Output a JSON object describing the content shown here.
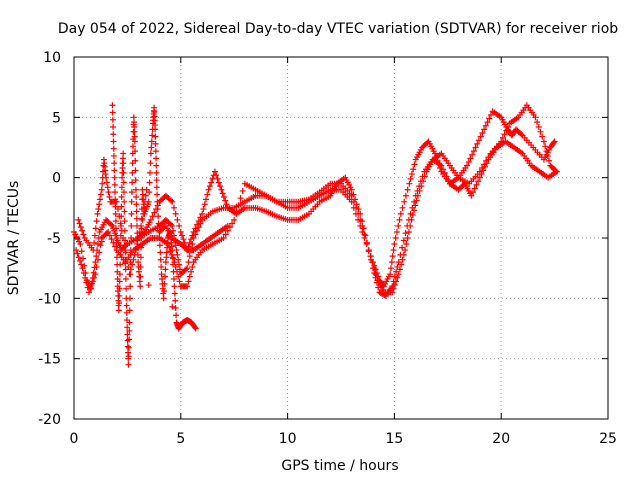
{
  "chart_data": {
    "type": "scatter",
    "title": "Day 054 of 2022, Sidereal Day-to-day VTEC variation (SDTVAR) for receiver riob",
    "xlabel": "GPS time / hours",
    "ylabel": "SDTVAR / TECUs",
    "xlim": [
      0,
      25
    ],
    "ylim": [
      -20,
      10
    ],
    "xticks": [
      0,
      5,
      10,
      15,
      20,
      25
    ],
    "yticks": [
      -20,
      -15,
      -10,
      -5,
      0,
      5,
      10
    ],
    "grid": true,
    "marker": "+",
    "series_color": "#ff0000",
    "series": [
      {
        "name": "track-a",
        "points": [
          [
            0.0,
            -4.5
          ],
          [
            0.3,
            -5.5
          ],
          [
            0.6,
            -8.5
          ],
          [
            0.8,
            -9.2
          ],
          [
            1.0,
            -7.0
          ],
          [
            1.2,
            -4.5
          ],
          [
            1.5,
            -3.5
          ],
          [
            1.8,
            -4.0
          ],
          [
            2.0,
            -5.0
          ],
          [
            2.2,
            -6.0
          ],
          [
            2.5,
            -5.5
          ],
          [
            3.0,
            -5.0
          ],
          [
            3.5,
            -4.5
          ],
          [
            4.0,
            -4.0
          ],
          [
            4.3,
            -3.5
          ],
          [
            4.6,
            -4.0
          ],
          [
            4.8,
            -6.0
          ],
          [
            5.0,
            -8.0
          ],
          [
            5.3,
            -7.5
          ],
          [
            5.6,
            -5.0
          ],
          [
            6.0,
            -3.5
          ],
          [
            6.5,
            -2.8
          ],
          [
            7.0,
            -2.5
          ],
          [
            7.5,
            -2.5
          ],
          [
            8.0,
            -2.0
          ],
          [
            8.5,
            -1.5
          ],
          [
            9.0,
            -1.5
          ],
          [
            9.5,
            -2.0
          ],
          [
            10.0,
            -2.5
          ],
          [
            10.5,
            -2.5
          ],
          [
            11.0,
            -2.0
          ],
          [
            11.5,
            -1.5
          ],
          [
            12.0,
            -1.0
          ],
          [
            12.5,
            -1.0
          ],
          [
            13.0,
            -2.0
          ],
          [
            13.5,
            -4.5
          ],
          [
            14.0,
            -7.0
          ],
          [
            14.3,
            -8.5
          ],
          [
            14.5,
            -9.0
          ],
          [
            14.8,
            -8.0
          ],
          [
            15.0,
            -5.5
          ],
          [
            15.3,
            -3.0
          ],
          [
            15.7,
            -0.5
          ],
          [
            16.0,
            1.5
          ],
          [
            16.3,
            2.5
          ],
          [
            16.6,
            3.0
          ],
          [
            16.9,
            2.0
          ],
          [
            17.2,
            0.5
          ],
          [
            17.6,
            -0.5
          ],
          [
            18.0,
            0.0
          ],
          [
            18.4,
            1.0
          ],
          [
            18.8,
            2.5
          ],
          [
            19.2,
            4.0
          ],
          [
            19.6,
            5.5
          ],
          [
            20.0,
            5.0
          ],
          [
            20.3,
            4.0
          ],
          [
            20.5,
            3.5
          ],
          [
            20.7,
            4.0
          ],
          [
            21.0,
            3.5
          ],
          [
            21.5,
            2.5
          ],
          [
            22.0,
            1.5
          ],
          [
            22.3,
            2.5
          ],
          [
            22.5,
            3.0
          ]
        ]
      },
      {
        "name": "track-b",
        "points": [
          [
            0.1,
            -6.0
          ],
          [
            0.4,
            -7.5
          ],
          [
            0.7,
            -9.5
          ],
          [
            1.0,
            -8.0
          ],
          [
            1.3,
            -5.0
          ],
          [
            1.6,
            -4.5
          ],
          [
            2.0,
            -6.0
          ],
          [
            2.4,
            -7.0
          ],
          [
            2.8,
            -6.0
          ],
          [
            3.2,
            -5.5
          ],
          [
            3.6,
            -5.0
          ],
          [
            4.0,
            -5.0
          ],
          [
            4.4,
            -5.5
          ],
          [
            4.7,
            -7.0
          ],
          [
            5.0,
            -9.0
          ],
          [
            5.3,
            -9.0
          ],
          [
            5.6,
            -7.0
          ],
          [
            6.0,
            -6.0
          ],
          [
            6.5,
            -5.5
          ],
          [
            7.0,
            -5.0
          ],
          [
            7.5,
            -3.5
          ],
          [
            8.0,
            -0.5
          ],
          [
            8.5,
            -1.0
          ],
          [
            9.0,
            -1.5
          ],
          [
            9.5,
            -2.0
          ],
          [
            10.0,
            -2.0
          ],
          [
            10.5,
            -2.0
          ],
          [
            11.0,
            -1.8
          ],
          [
            11.5,
            -1.2
          ],
          [
            12.0,
            -0.5
          ],
          [
            12.5,
            -0.5
          ],
          [
            13.0,
            -1.5
          ],
          [
            13.5,
            -4.0
          ],
          [
            14.0,
            -7.5
          ],
          [
            14.3,
            -9.5
          ],
          [
            14.6,
            -9.8
          ],
          [
            14.9,
            -9.0
          ],
          [
            15.2,
            -7.0
          ],
          [
            15.6,
            -4.0
          ],
          [
            16.0,
            -1.5
          ],
          [
            16.4,
            0.5
          ],
          [
            16.8,
            1.5
          ],
          [
            17.2,
            2.0
          ],
          [
            17.6,
            1.0
          ],
          [
            18.0,
            0.0
          ],
          [
            18.5,
            -0.5
          ],
          [
            19.0,
            0.5
          ],
          [
            19.5,
            2.0
          ],
          [
            20.0,
            3.0
          ],
          [
            20.4,
            4.5
          ],
          [
            20.8,
            5.0
          ],
          [
            21.2,
            6.0
          ],
          [
            21.6,
            5.0
          ],
          [
            22.0,
            3.0
          ],
          [
            22.3,
            1.0
          ],
          [
            22.6,
            0.5
          ]
        ]
      },
      {
        "name": "track-c",
        "points": [
          [
            3.0,
            -5.0
          ],
          [
            3.3,
            -4.5
          ],
          [
            3.6,
            -3.5
          ],
          [
            4.0,
            -2.0
          ],
          [
            4.3,
            -1.5
          ],
          [
            4.6,
            -2.0
          ],
          [
            5.0,
            -4.5
          ],
          [
            5.3,
            -6.0
          ],
          [
            5.6,
            -4.5
          ],
          [
            6.0,
            -3.0
          ],
          [
            6.3,
            -1.0
          ],
          [
            6.6,
            0.5
          ],
          [
            6.9,
            -1.0
          ],
          [
            7.2,
            -2.5
          ],
          [
            7.6,
            -3.0
          ],
          [
            8.0,
            -2.5
          ],
          [
            8.5,
            -2.5
          ],
          [
            9.0,
            -2.8
          ],
          [
            9.5,
            -3.2
          ],
          [
            10.0,
            -3.5
          ],
          [
            10.5,
            -3.5
          ],
          [
            11.0,
            -3.0
          ],
          [
            11.5,
            -2.0
          ],
          [
            12.0,
            -1.5
          ],
          [
            12.3,
            -0.5
          ],
          [
            12.7,
            0.0
          ],
          [
            13.0,
            -1.0
          ],
          [
            13.4,
            -3.0
          ],
          [
            13.8,
            -6.0
          ],
          [
            14.2,
            -8.5
          ],
          [
            14.5,
            -9.5
          ],
          [
            14.9,
            -9.5
          ],
          [
            15.2,
            -8.0
          ],
          [
            15.5,
            -6.0
          ],
          [
            15.8,
            -3.5
          ],
          [
            16.1,
            -1.5
          ],
          [
            16.5,
            0.5
          ],
          [
            16.8,
            1.5
          ],
          [
            17.2,
            1.0
          ],
          [
            17.6,
            -0.5
          ],
          [
            18.0,
            -1.0
          ],
          [
            18.3,
            -0.5
          ],
          [
            18.6,
            -1.5
          ],
          [
            19.0,
            0.0
          ],
          [
            19.4,
            1.5
          ],
          [
            19.8,
            2.5
          ],
          [
            20.2,
            3.0
          ],
          [
            20.6,
            2.5
          ],
          [
            21.0,
            2.0
          ],
          [
            21.4,
            1.0
          ],
          [
            21.8,
            0.5
          ],
          [
            22.2,
            0.0
          ],
          [
            22.6,
            0.5
          ]
        ]
      },
      {
        "name": "track-d",
        "points": [
          [
            4.0,
            -4.5
          ],
          [
            4.3,
            -4.0
          ],
          [
            4.6,
            -5.0
          ],
          [
            5.0,
            -5.5
          ],
          [
            5.3,
            -6.0
          ],
          [
            5.6,
            -6.0
          ],
          [
            6.0,
            -5.5
          ],
          [
            6.4,
            -5.0
          ],
          [
            6.8,
            -4.5
          ],
          [
            7.2,
            -4.0
          ]
        ]
      },
      {
        "name": "early-spikes",
        "points": [
          [
            1.8,
            6.0
          ],
          [
            1.85,
            3.0
          ],
          [
            1.9,
            0.0
          ],
          [
            1.95,
            -3.0
          ],
          [
            2.0,
            -6.0
          ],
          [
            2.05,
            -9.0
          ],
          [
            2.1,
            -11.0
          ],
          [
            2.15,
            -8.0
          ],
          [
            2.2,
            -4.0
          ],
          [
            2.25,
            0.0
          ],
          [
            2.3,
            2.0
          ],
          [
            2.35,
            -2.0
          ],
          [
            2.4,
            -6.0
          ],
          [
            2.45,
            -10.0
          ],
          [
            2.5,
            -13.0
          ],
          [
            2.55,
            -15.5
          ],
          [
            2.6,
            -12.0
          ],
          [
            2.65,
            -7.0
          ],
          [
            2.7,
            -2.0
          ],
          [
            2.75,
            2.0
          ],
          [
            2.8,
            5.0
          ],
          [
            2.85,
            3.0
          ],
          [
            2.9,
            -1.0
          ],
          [
            2.95,
            -4.0
          ],
          [
            3.0,
            -7.0
          ],
          [
            3.1,
            -9.0
          ],
          [
            3.15,
            -5.0
          ],
          [
            3.2,
            -1.0
          ],
          [
            3.3,
            -3.0
          ],
          [
            3.5,
            -2.0
          ],
          [
            3.6,
            2.0
          ],
          [
            3.7,
            4.5
          ],
          [
            3.75,
            5.8
          ],
          [
            3.8,
            4.0
          ],
          [
            3.85,
            1.0
          ],
          [
            3.9,
            -2.0
          ],
          [
            4.0,
            -5.0
          ],
          [
            4.1,
            -8.0
          ],
          [
            4.2,
            -10.0
          ],
          [
            4.3,
            -7.0
          ],
          [
            4.4,
            -5.0
          ],
          [
            4.5,
            -4.5
          ],
          [
            4.6,
            -6.0
          ],
          [
            4.7,
            -9.0
          ],
          [
            4.8,
            -12.0
          ],
          [
            4.9,
            -12.5
          ],
          [
            5.1,
            -12.0
          ],
          [
            5.3,
            -11.8
          ],
          [
            5.5,
            -12.0
          ],
          [
            5.7,
            -12.5
          ],
          [
            0.2,
            -3.5
          ],
          [
            0.5,
            -5.0
          ],
          [
            0.9,
            -6.0
          ],
          [
            1.1,
            -3.0
          ],
          [
            1.3,
            -1.0
          ],
          [
            1.4,
            1.5
          ],
          [
            1.5,
            0.0
          ],
          [
            1.7,
            -2.0
          ],
          [
            2.0,
            -2.0
          ],
          [
            2.3,
            -5.0
          ],
          [
            2.6,
            -8.0
          ],
          [
            2.9,
            -6.0
          ],
          [
            3.2,
            -3.5
          ],
          [
            3.4,
            -1.0
          ]
        ]
      }
    ]
  }
}
